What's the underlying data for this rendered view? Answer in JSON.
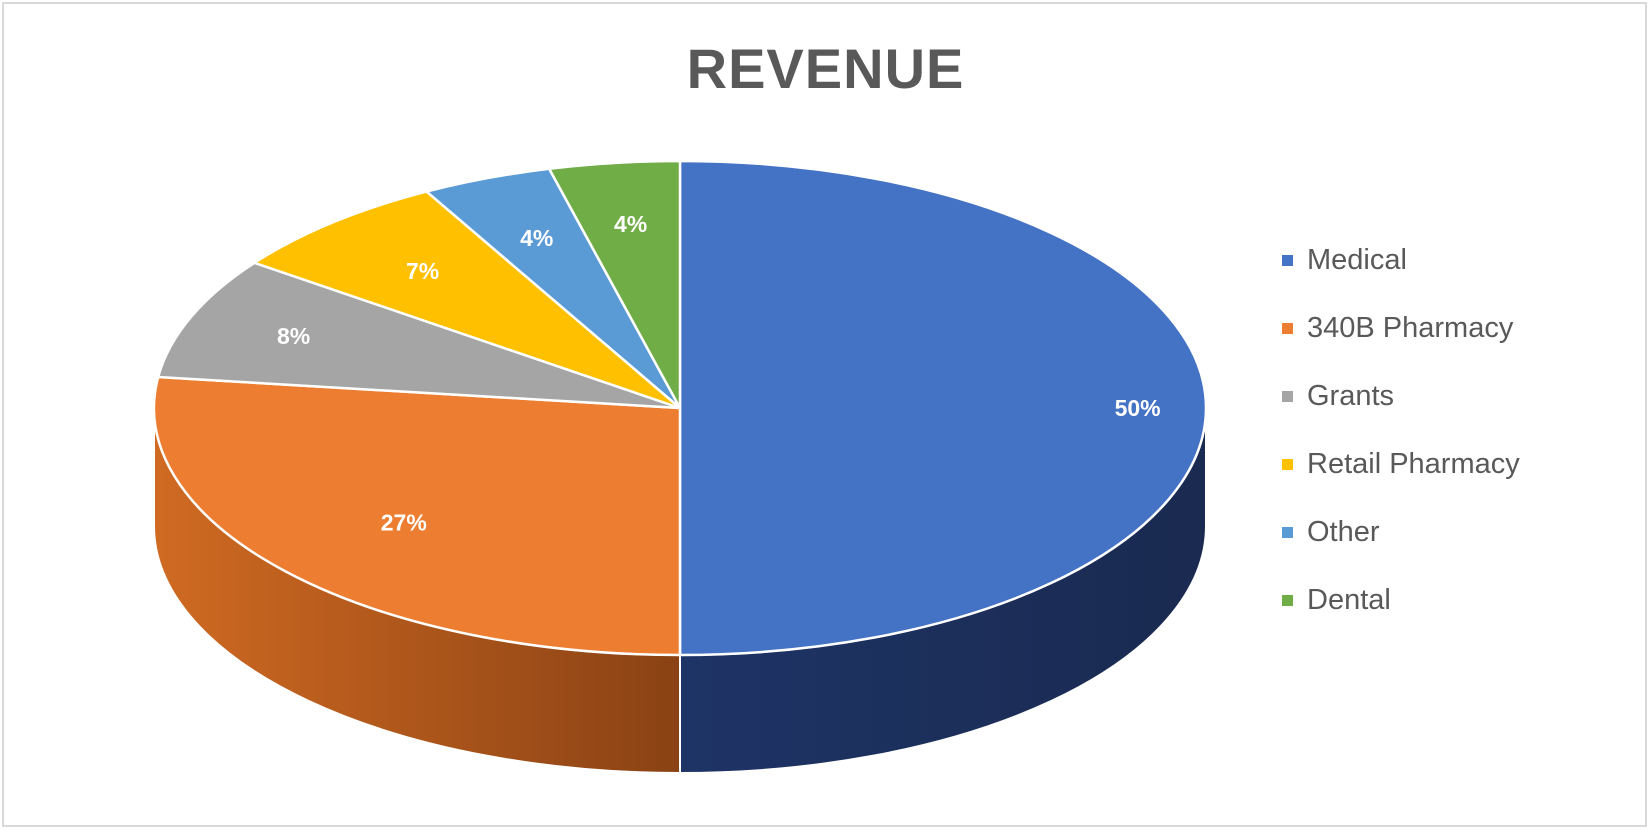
{
  "chart_data": {
    "type": "pie",
    "title": "REVENUE",
    "categories": [
      "Medical",
      "340B Pharmacy",
      "Grants",
      "Retail Pharmacy",
      "Other",
      "Dental"
    ],
    "values": [
      50,
      27,
      8,
      7,
      4,
      4
    ],
    "labels": [
      "50%",
      "27%",
      "8%",
      "7%",
      "4%",
      "4%"
    ],
    "colors": [
      "#4472C4",
      "#ED7D31",
      "#A5A5A5",
      "#FFC000",
      "#5B9BD5",
      "#70AD47"
    ],
    "legend_position": "right",
    "style": "3d"
  }
}
